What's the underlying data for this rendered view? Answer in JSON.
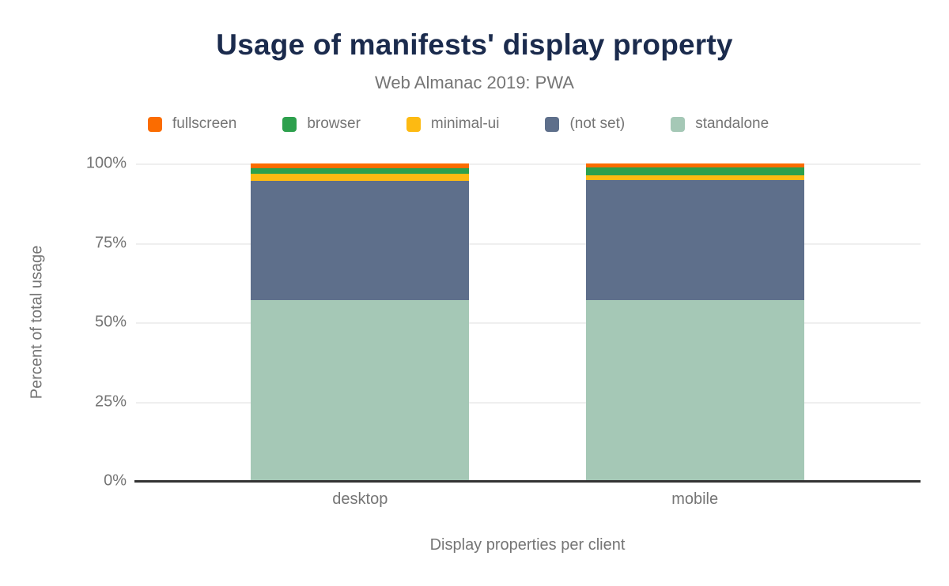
{
  "chart_data": {
    "type": "bar",
    "stacked": true,
    "title": "Usage of manifests' display property",
    "subtitle": "Web Almanac 2019: PWA",
    "xlabel": "Display properties per client",
    "ylabel": "Percent of total usage",
    "categories": [
      "desktop",
      "mobile"
    ],
    "series": [
      {
        "name": "fullscreen",
        "color": "#fb6c00",
        "values": [
          1.4,
          1.2
        ]
      },
      {
        "name": "browser",
        "color": "#2da04d",
        "values": [
          1.8,
          2.5
        ]
      },
      {
        "name": "minimal-ui",
        "color": "#fdba12",
        "values": [
          2.2,
          1.5
        ]
      },
      {
        "name": "(not set)",
        "color": "#5e6f8b",
        "values": [
          37.6,
          37.8
        ]
      },
      {
        "name": "standalone",
        "color": "#a5c8b6",
        "values": [
          57.0,
          57.0
        ]
      }
    ],
    "ylim": [
      0,
      100
    ],
    "yticks": [
      {
        "value": 0,
        "label": "0%"
      },
      {
        "value": 25,
        "label": "25%"
      },
      {
        "value": 50,
        "label": "50%"
      },
      {
        "value": 75,
        "label": "75%"
      },
      {
        "value": 100,
        "label": "100%"
      }
    ],
    "grid": true,
    "legend_position": "top"
  },
  "colors": {
    "title": "#1b2b4d",
    "subtitle": "#757575",
    "axis_text": "#757575",
    "gridline": "#efefef",
    "axis_line": "#333333",
    "background": "#ffffff"
  }
}
